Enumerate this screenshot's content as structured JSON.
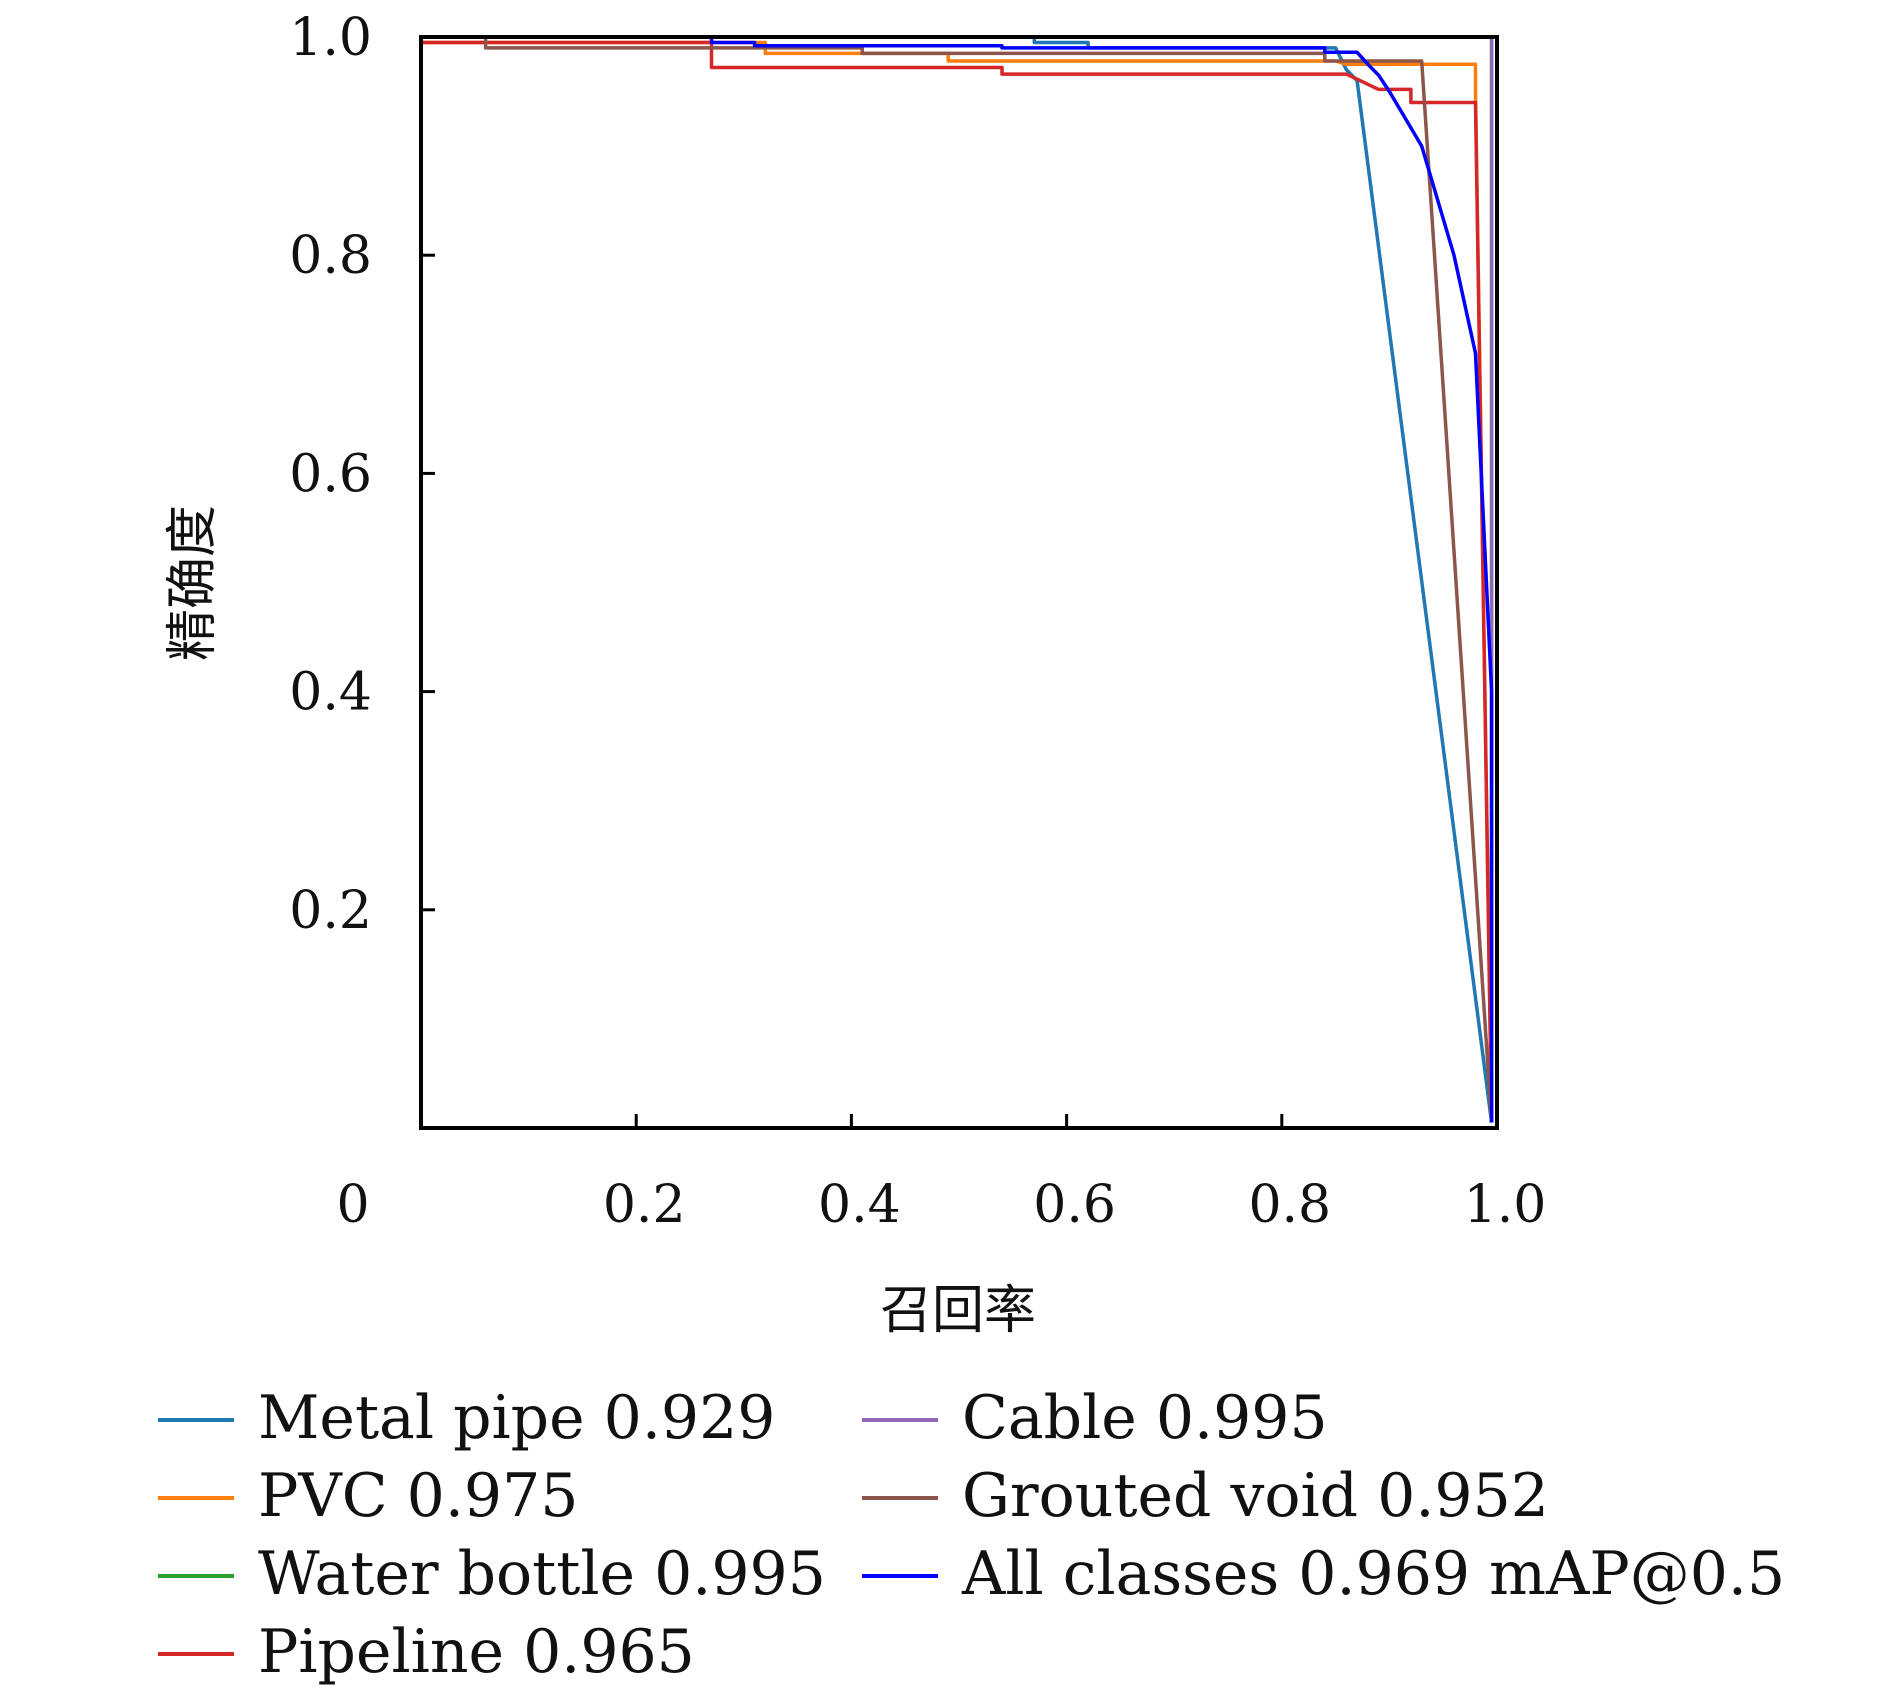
{
  "chart_data": {
    "type": "line",
    "xlabel": "召回率",
    "ylabel": "精确度",
    "xlim": [
      0,
      1
    ],
    "ylim": [
      0,
      1
    ],
    "x_ticks": [
      0.2,
      0.4,
      0.6,
      0.8,
      1.0
    ],
    "x_tick_labels": [
      "0.2",
      "0.4",
      "0.6",
      "0.8",
      "1.0"
    ],
    "x_origin_label": "0",
    "y_ticks": [
      0.2,
      0.4,
      0.6,
      0.8,
      1.0
    ],
    "y_tick_labels": [
      "0.2",
      "0.4",
      "0.6",
      "0.8",
      "1.0"
    ],
    "grid": false,
    "legend_position": "bottom",
    "series": [
      {
        "name": "Metal pipe 0.929",
        "color": "#1f77b4",
        "points": [
          [
            0,
            1.0
          ],
          [
            0.57,
            1.0
          ],
          [
            0.57,
            0.995
          ],
          [
            0.62,
            0.995
          ],
          [
            0.62,
            0.99
          ],
          [
            0.85,
            0.99
          ],
          [
            0.86,
            0.97
          ],
          [
            0.87,
            0.96
          ],
          [
            0.995,
            0.005
          ]
        ]
      },
      {
        "name": "PVC 0.975",
        "color": "#ff7f0e",
        "points": [
          [
            0,
            0.995
          ],
          [
            0.32,
            0.995
          ],
          [
            0.32,
            0.985
          ],
          [
            0.49,
            0.985
          ],
          [
            0.49,
            0.978
          ],
          [
            0.85,
            0.978
          ],
          [
            0.86,
            0.975
          ],
          [
            0.98,
            0.975
          ],
          [
            0.98,
            0.95
          ],
          [
            0.995,
            0.005
          ]
        ]
      },
      {
        "name": "Water bottle 0.995",
        "color": "#2ca02c",
        "points": [
          [
            0,
            1.0
          ],
          [
            0.995,
            1.0
          ],
          [
            0.995,
            0.005
          ]
        ]
      },
      {
        "name": "Pipeline 0.965",
        "color": "#d62728",
        "points": [
          [
            0,
            0.995
          ],
          [
            0.27,
            0.995
          ],
          [
            0.27,
            0.972
          ],
          [
            0.54,
            0.972
          ],
          [
            0.54,
            0.966
          ],
          [
            0.84,
            0.966
          ],
          [
            0.86,
            0.966
          ],
          [
            0.89,
            0.952
          ],
          [
            0.92,
            0.952
          ],
          [
            0.92,
            0.94
          ],
          [
            0.98,
            0.94
          ],
          [
            0.995,
            0.005
          ]
        ]
      },
      {
        "name": "Cable 0.995",
        "color": "#9467bd",
        "points": [
          [
            0,
            1.0
          ],
          [
            0.995,
            1.0
          ],
          [
            0.995,
            0.005
          ]
        ]
      },
      {
        "name": "Grouted void 0.952",
        "color": "#8c564b",
        "points": [
          [
            0,
            1.0
          ],
          [
            0.06,
            1.0
          ],
          [
            0.06,
            0.99
          ],
          [
            0.41,
            0.99
          ],
          [
            0.41,
            0.985
          ],
          [
            0.84,
            0.985
          ],
          [
            0.84,
            0.978
          ],
          [
            0.93,
            0.978
          ],
          [
            0.995,
            0.005
          ]
        ]
      },
      {
        "name": "All classes 0.969 mAP@0.5",
        "color": "#0000ff",
        "points": [
          [
            0,
            1.0
          ],
          [
            0.27,
            1.0
          ],
          [
            0.27,
            0.995
          ],
          [
            0.31,
            0.995
          ],
          [
            0.31,
            0.992
          ],
          [
            0.54,
            0.992
          ],
          [
            0.54,
            0.99
          ],
          [
            0.84,
            0.99
          ],
          [
            0.84,
            0.986
          ],
          [
            0.87,
            0.986
          ],
          [
            0.88,
            0.975
          ],
          [
            0.89,
            0.965
          ],
          [
            0.9,
            0.95
          ],
          [
            0.93,
            0.9
          ],
          [
            0.96,
            0.8
          ],
          [
            0.98,
            0.71
          ],
          [
            0.995,
            0.4
          ],
          [
            0.995,
            0.005
          ]
        ]
      }
    ]
  }
}
